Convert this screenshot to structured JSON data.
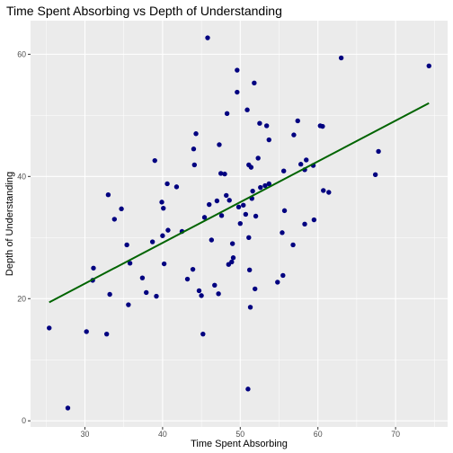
{
  "chart_data": {
    "type": "scatter",
    "title": "Time Spent Absorbing vs Depth of Understanding",
    "xlabel": "Time Spent Absorbing",
    "ylabel": "Depth of Understanding",
    "xlim": [
      23.0,
      76.7
    ],
    "ylim": [
      -1.0,
      65.5
    ],
    "x_ticks": [
      30,
      40,
      50,
      60,
      70
    ],
    "y_ticks": [
      0,
      20,
      40,
      60
    ],
    "grid": true,
    "colors": {
      "panel": "#ebebeb",
      "grid": "#ffffff",
      "points": "#000080",
      "trend": "#006400"
    },
    "trend_line": {
      "x": [
        25.4,
        74.3
      ],
      "y": [
        19.4,
        52.0
      ]
    },
    "points": [
      [
        25.4,
        15.2
      ],
      [
        27.8,
        2.1
      ],
      [
        30.2,
        14.6
      ],
      [
        31.1,
        25.0
      ],
      [
        31.0,
        23.0
      ],
      [
        32.8,
        14.2
      ],
      [
        33.0,
        37.0
      ],
      [
        33.2,
        20.7
      ],
      [
        33.8,
        33.0
      ],
      [
        34.7,
        34.7
      ],
      [
        35.4,
        28.8
      ],
      [
        35.6,
        19.0
      ],
      [
        35.8,
        25.8
      ],
      [
        37.4,
        23.4
      ],
      [
        37.9,
        21.0
      ],
      [
        38.7,
        29.3
      ],
      [
        39.0,
        42.6
      ],
      [
        39.2,
        20.4
      ],
      [
        39.9,
        35.8
      ],
      [
        40.1,
        34.8
      ],
      [
        40.0,
        30.3
      ],
      [
        40.2,
        25.7
      ],
      [
        40.6,
        38.8
      ],
      [
        40.7,
        31.2
      ],
      [
        41.8,
        38.3
      ],
      [
        42.5,
        31.0
      ],
      [
        43.2,
        23.2
      ],
      [
        43.9,
        24.8
      ],
      [
        44.0,
        44.5
      ],
      [
        44.1,
        41.9
      ],
      [
        44.3,
        47.0
      ],
      [
        44.7,
        21.3
      ],
      [
        45.0,
        20.5
      ],
      [
        45.2,
        14.2
      ],
      [
        45.4,
        33.3
      ],
      [
        45.8,
        62.7
      ],
      [
        46.0,
        35.4
      ],
      [
        46.3,
        29.6
      ],
      [
        46.7,
        22.2
      ],
      [
        47.0,
        36.0
      ],
      [
        47.2,
        20.8
      ],
      [
        47.3,
        45.2
      ],
      [
        47.5,
        40.5
      ],
      [
        47.6,
        33.6
      ],
      [
        48.0,
        40.4
      ],
      [
        48.2,
        36.9
      ],
      [
        48.3,
        50.3
      ],
      [
        48.5,
        25.6
      ],
      [
        48.6,
        36.1
      ],
      [
        48.9,
        26.0
      ],
      [
        49.0,
        29.0
      ],
      [
        49.1,
        26.7
      ],
      [
        49.6,
        57.4
      ],
      [
        49.6,
        53.8
      ],
      [
        49.8,
        35.0
      ],
      [
        50.0,
        32.3
      ],
      [
        50.4,
        35.3
      ],
      [
        50.7,
        33.8
      ],
      [
        50.9,
        50.9
      ],
      [
        51.0,
        5.2
      ],
      [
        51.1,
        41.9
      ],
      [
        51.1,
        30.0
      ],
      [
        51.2,
        24.7
      ],
      [
        51.3,
        18.6
      ],
      [
        51.4,
        41.5
      ],
      [
        51.5,
        36.4
      ],
      [
        51.6,
        37.6
      ],
      [
        51.8,
        55.3
      ],
      [
        51.9,
        21.6
      ],
      [
        52.0,
        33.5
      ],
      [
        52.3,
        43.0
      ],
      [
        52.5,
        48.7
      ],
      [
        52.6,
        38.2
      ],
      [
        53.2,
        38.5
      ],
      [
        53.4,
        48.3
      ],
      [
        53.7,
        38.8
      ],
      [
        53.7,
        46.0
      ],
      [
        54.8,
        22.7
      ],
      [
        55.4,
        30.8
      ],
      [
        55.5,
        23.8
      ],
      [
        55.6,
        40.9
      ],
      [
        55.7,
        34.4
      ],
      [
        56.8,
        28.8
      ],
      [
        56.9,
        46.8
      ],
      [
        57.4,
        49.1
      ],
      [
        57.8,
        42.0
      ],
      [
        58.3,
        41.1
      ],
      [
        58.3,
        32.2
      ],
      [
        58.5,
        42.7
      ],
      [
        59.4,
        41.8
      ],
      [
        59.5,
        32.9
      ],
      [
        60.3,
        48.3
      ],
      [
        60.6,
        48.2
      ],
      [
        60.7,
        37.7
      ],
      [
        61.4,
        37.4
      ],
      [
        63.0,
        59.4
      ],
      [
        67.4,
        40.3
      ],
      [
        67.8,
        44.1
      ],
      [
        74.3,
        58.1
      ]
    ]
  }
}
